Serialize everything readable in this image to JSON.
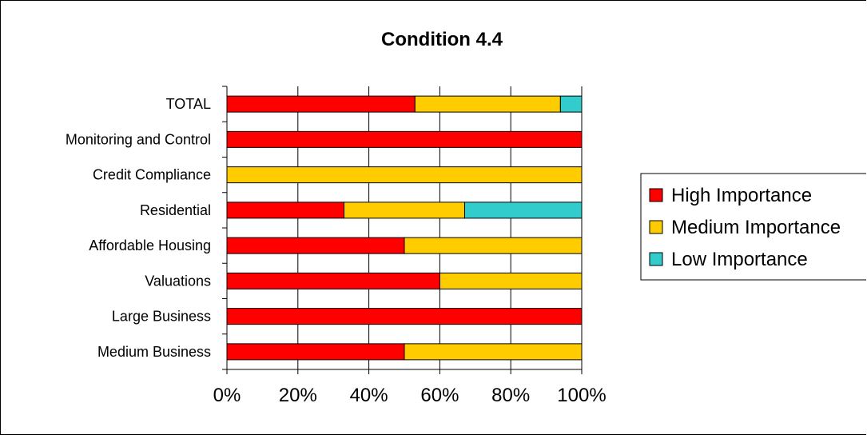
{
  "chart_data": {
    "type": "bar",
    "orientation": "horizontal",
    "stacked": "percent",
    "title": "Condition 4.4",
    "categories": [
      "TOTAL",
      "Monitoring and Control",
      "Credit Compliance",
      "Residential",
      "Affordable Housing",
      "Valuations",
      "Large Business",
      "Medium Business"
    ],
    "series": [
      {
        "name": "High Importance",
        "color": "#ff0000",
        "values": [
          53,
          100,
          0,
          33,
          50,
          60,
          100,
          50
        ]
      },
      {
        "name": "Medium Importance",
        "color": "#ffcc00",
        "values": [
          41,
          0,
          100,
          34,
          50,
          40,
          0,
          50
        ]
      },
      {
        "name": "Low Importance",
        "color": "#33cccc",
        "values": [
          6,
          0,
          0,
          33,
          0,
          0,
          0,
          0
        ]
      }
    ],
    "xlim": [
      0,
      100
    ],
    "xticks": [
      "0%",
      "20%",
      "40%",
      "60%",
      "80%",
      "100%"
    ],
    "grid": true,
    "legend": "right"
  }
}
